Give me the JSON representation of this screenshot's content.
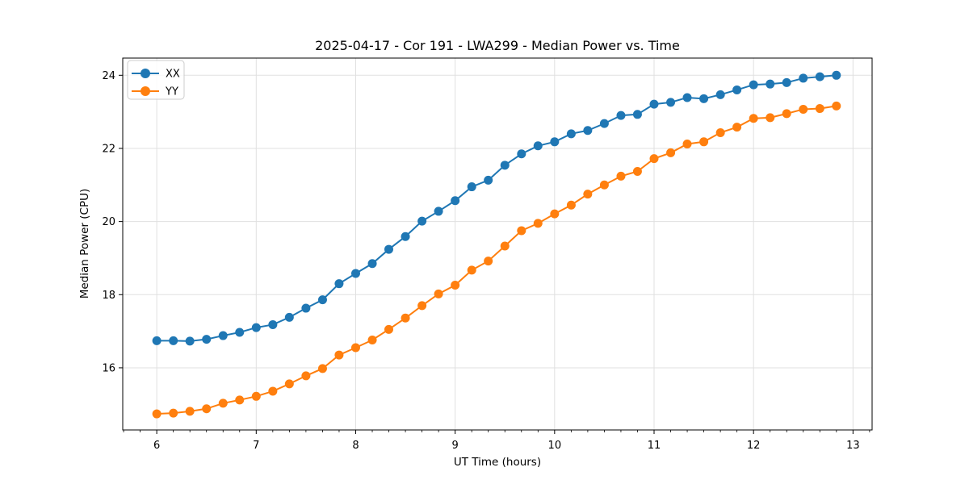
{
  "chart_data": {
    "type": "line",
    "title": "2025-04-17 - Cor 191 - LWA299 - Median Power vs. Time",
    "xlabel": "UT Time (hours)",
    "ylabel": "Median Power (CPU)",
    "xlim": [
      5.658,
      13.192
    ],
    "ylim": [
      14.3,
      24.47
    ],
    "xticks": [
      6,
      7,
      8,
      9,
      10,
      11,
      12,
      13
    ],
    "yticks": [
      16,
      18,
      20,
      22,
      24
    ],
    "x_minor_step": 0.166667,
    "grid": true,
    "grid_color": "#e0e0e0",
    "legend_position": "upper-left",
    "x": [
      6.0,
      6.167,
      6.333,
      6.5,
      6.667,
      6.833,
      7.0,
      7.167,
      7.333,
      7.5,
      7.667,
      7.833,
      8.0,
      8.167,
      8.333,
      8.5,
      8.667,
      8.833,
      9.0,
      9.167,
      9.333,
      9.5,
      9.667,
      9.833,
      10.0,
      10.167,
      10.333,
      10.5,
      10.667,
      10.833,
      11.0,
      11.167,
      11.333,
      11.5,
      11.667,
      11.833,
      12.0,
      12.167,
      12.333,
      12.5,
      12.667,
      12.833
    ],
    "series": [
      {
        "name": "XX",
        "color": "#1f77b4",
        "values": [
          16.74,
          16.74,
          16.73,
          16.78,
          16.88,
          16.97,
          17.1,
          17.18,
          17.38,
          17.63,
          17.86,
          18.3,
          18.58,
          18.85,
          19.24,
          19.59,
          20.01,
          20.28,
          20.57,
          20.95,
          21.13,
          21.54,
          21.85,
          22.07,
          22.18,
          22.4,
          22.49,
          22.68,
          22.9,
          22.93,
          23.21,
          23.26,
          23.39,
          23.36,
          23.47,
          23.6,
          23.74,
          23.76,
          23.8,
          23.92,
          23.96,
          24.0
        ]
      },
      {
        "name": "YY",
        "color": "#ff7f0e",
        "values": [
          14.74,
          14.76,
          14.81,
          14.88,
          15.03,
          15.12,
          15.22,
          15.36,
          15.56,
          15.78,
          15.98,
          16.35,
          16.55,
          16.76,
          17.05,
          17.36,
          17.7,
          18.02,
          18.26,
          18.67,
          18.92,
          19.33,
          19.75,
          19.95,
          20.21,
          20.45,
          20.75,
          21.0,
          21.24,
          21.37,
          21.72,
          21.88,
          22.12,
          22.18,
          22.43,
          22.58,
          22.82,
          22.84,
          22.95,
          23.07,
          23.09,
          23.16
        ]
      }
    ]
  }
}
